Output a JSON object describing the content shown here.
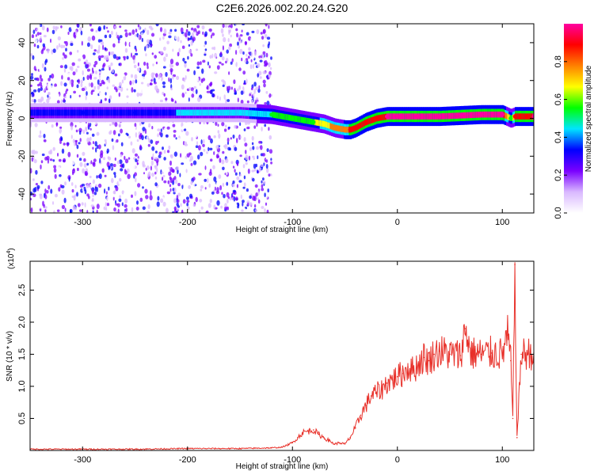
{
  "chart_data": [
    {
      "type": "heatmap",
      "title": "C2E6.2026.002.20.24.G20",
      "xlabel": "Height of straight line (km)",
      "ylabel": "Frequency (Hz)",
      "xlim": [
        -350,
        130
      ],
      "ylim": [
        -50,
        50
      ],
      "xticks": [
        -300,
        -200,
        -100,
        0,
        100
      ],
      "yticks": [
        -40,
        -20,
        0,
        20,
        40
      ],
      "colorbar": {
        "label": "Normalized spectral amplitude",
        "range": [
          0,
          1
        ],
        "ticks": [
          "0.0",
          "0.2",
          "0.4",
          "0.6",
          "0.8"
        ],
        "tick_values": [
          0.0,
          0.2,
          0.4,
          0.6,
          0.8
        ],
        "colors": [
          "#ffffff",
          "#d9b8ff",
          "#7a00ff",
          "#0000ff",
          "#00e5ff",
          "#00ff00",
          "#ffff00",
          "#ff8000",
          "#ff0000",
          "#ff00a0"
        ]
      },
      "ridge": {
        "x": [
          -350,
          -300,
          -250,
          -200,
          -150,
          -120,
          -100,
          -90,
          -80,
          -70,
          -60,
          -50,
          -45,
          -40,
          -30,
          -20,
          -10,
          0,
          20,
          40,
          60,
          80,
          100,
          108,
          112,
          130
        ],
        "y": [
          3,
          3,
          3,
          3,
          3,
          2,
          0,
          -1,
          -2,
          -3,
          -5,
          -6,
          -6,
          -5,
          -2,
          0,
          1,
          1,
          1,
          1,
          1.5,
          2,
          2,
          0,
          1,
          1
        ],
        "amplitude": [
          0.3,
          0.3,
          0.35,
          0.4,
          0.45,
          0.5,
          0.5,
          0.55,
          0.6,
          0.7,
          0.75,
          0.8,
          0.85,
          0.9,
          0.9,
          0.9,
          0.95,
          0.95,
          0.95,
          0.95,
          0.95,
          0.95,
          0.95,
          0.5,
          0.9,
          0.95
        ]
      },
      "noise_region": {
        "x_from": -350,
        "x_to": -120,
        "amplitude": 0.35
      }
    },
    {
      "type": "line",
      "title": "",
      "xlabel": "Height of straight line (km)",
      "ylabel": "SNR (10 * v/v)",
      "y_scale_note": "(x10",
      "y_scale_exponent": "4",
      "xlim": [
        -350,
        130
      ],
      "ylim": [
        0,
        2.95
      ],
      "xticks": [
        -300,
        -200,
        -100,
        0,
        100
      ],
      "yticks": [
        0.5,
        1.0,
        1.5,
        2.0,
        2.5
      ],
      "ytick_labels": [
        "0.5",
        "1.0",
        "1.5",
        "2.0",
        "2.5"
      ],
      "series": [
        {
          "name": "SNR",
          "color": "#e8312a",
          "x": [
            -350,
            -300,
            -250,
            -200,
            -150,
            -120,
            -110,
            -100,
            -95,
            -90,
            -85,
            -80,
            -75,
            -70,
            -65,
            -60,
            -55,
            -50,
            -45,
            -40,
            -35,
            -30,
            -25,
            -20,
            -15,
            -10,
            -5,
            0,
            5,
            10,
            15,
            20,
            25,
            30,
            35,
            40,
            50,
            60,
            65,
            70,
            80,
            90,
            100,
            105,
            108,
            110,
            112,
            114,
            118,
            130
          ],
          "values": [
            0.02,
            0.02,
            0.02,
            0.03,
            0.03,
            0.04,
            0.05,
            0.12,
            0.2,
            0.28,
            0.3,
            0.32,
            0.25,
            0.2,
            0.15,
            0.1,
            0.12,
            0.1,
            0.2,
            0.35,
            0.55,
            0.7,
            0.85,
            0.9,
            0.95,
            1.05,
            1.1,
            1.15,
            1.2,
            1.3,
            1.25,
            1.35,
            1.45,
            1.4,
            1.5,
            1.55,
            1.5,
            1.48,
            1.9,
            1.52,
            1.5,
            1.52,
            1.5,
            1.8,
            1.4,
            0.5,
            2.9,
            0.2,
            1.5,
            1.52
          ]
        }
      ]
    }
  ]
}
